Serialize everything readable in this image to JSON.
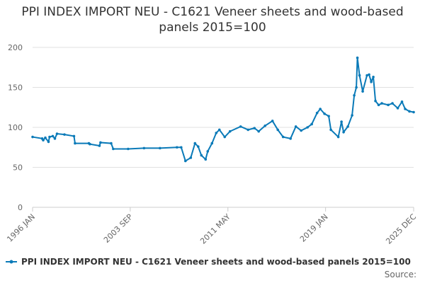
{
  "chart_data": {
    "type": "line",
    "title": "PPI INDEX IMPORT NEU - C1621 Veneer sheets and wood-based panels 2015=100",
    "source": "Source:",
    "x": [
      0,
      9,
      10,
      12,
      15,
      16,
      19,
      21,
      23,
      30,
      39,
      40,
      53,
      54,
      63,
      64,
      74,
      76,
      90,
      105,
      120,
      136,
      140,
      144,
      149,
      153,
      156,
      159,
      163,
      165,
      169,
      173,
      176,
      181,
      186,
      196,
      203,
      209,
      213,
      219,
      226,
      231,
      236,
      243,
      248,
      253,
      259,
      263,
      268,
      271,
      275,
      279,
      281,
      288,
      291,
      293,
      297,
      301,
      303,
      305,
      306,
      308,
      311,
      315,
      317,
      319,
      321,
      323,
      326,
      329,
      335,
      339,
      344,
      348,
      351,
      355,
      359
    ],
    "xlim": [
      0,
      359
    ],
    "xticks": [
      {
        "value": 0,
        "label": "1996 JAN"
      },
      {
        "value": 92,
        "label": "2003 SEP"
      },
      {
        "value": 184,
        "label": "2011 MAY"
      },
      {
        "value": 276,
        "label": "2019 JAN"
      },
      {
        "value": 359,
        "label": "2025 DEC"
      }
    ],
    "ylim": [
      0,
      200
    ],
    "yticks": [
      0,
      50,
      100,
      150,
      200
    ],
    "grid": true,
    "series": [
      {
        "name": "PPI INDEX IMPORT NEU - C1621 Veneer sheets and wood-based panels 2015=100",
        "color": "#0a7ab8",
        "values": [
          88,
          86,
          84,
          87,
          82,
          88,
          89,
          86,
          92,
          91,
          89,
          80,
          80,
          79,
          77,
          81,
          80,
          73,
          73,
          74,
          74,
          75,
          75,
          58,
          62,
          80,
          76,
          65,
          60,
          70,
          80,
          93,
          97,
          88,
          95,
          101,
          97,
          99,
          95,
          102,
          108,
          97,
          88,
          86,
          101,
          96,
          100,
          104,
          118,
          123,
          117,
          114,
          97,
          88,
          107,
          94,
          101,
          115,
          140,
          150,
          187,
          165,
          145,
          165,
          166,
          157,
          163,
          133,
          128,
          130,
          128,
          130,
          124,
          132,
          123,
          120,
          119
        ]
      }
    ]
  }
}
